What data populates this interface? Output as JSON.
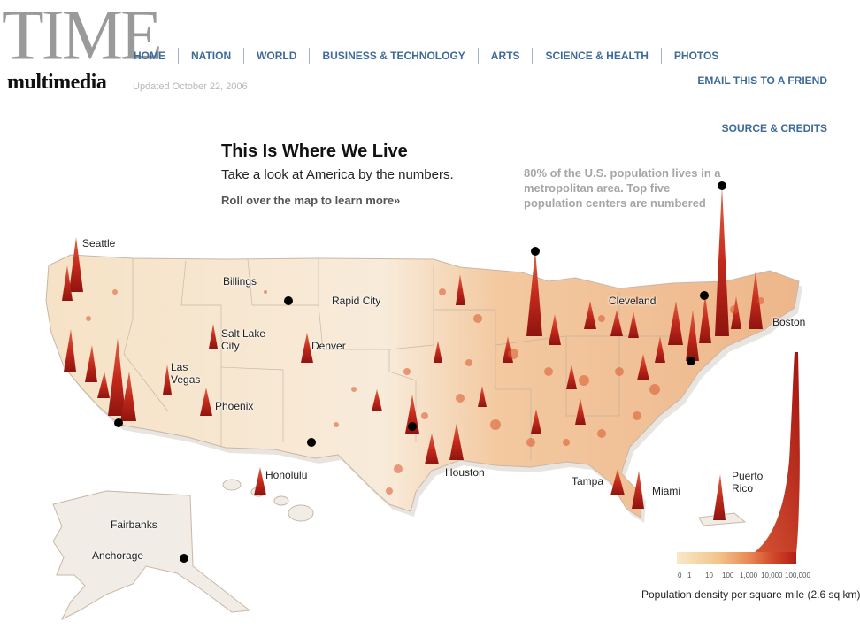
{
  "header": {
    "logo_text": "TIME",
    "logo_sub": "multimedia",
    "updated": "Updated October 22, 2006",
    "email_link": "EMAIL THIS TO A FRIEND",
    "source_link": "SOURCE & CREDITS"
  },
  "nav": {
    "items": [
      {
        "label": "HOME"
      },
      {
        "label": "NATION"
      },
      {
        "label": "WORLD"
      },
      {
        "label": "BUSINESS & TECHNOLOGY"
      },
      {
        "label": "ARTS"
      },
      {
        "label": "SCIENCE & HEALTH"
      },
      {
        "label": "PHOTOS"
      }
    ]
  },
  "main": {
    "title": "This Is Where We Live",
    "subtitle": "Take a look at America by the numbers.",
    "rollover": "Roll over the map to learn more»",
    "note": "80% of the U.S. population lives in a metropolitan area. Top five population centers are numbered"
  },
  "cities": {
    "seattle": "Seattle",
    "billings": "Billings",
    "rapid_city": "Rapid City",
    "salt_lake_city": "Salt Lake\nCity",
    "denver": "Denver",
    "las_vegas": "Las\nVegas",
    "phoenix": "Phoenix",
    "cleveland": "Cleveland",
    "boston": "Boston",
    "honolulu": "Honolulu",
    "houston": "Houston",
    "tampa": "Tampa",
    "miami": "Miami",
    "puerto_rico": "Puerto\nRico",
    "fairbanks": "Fairbanks",
    "anchorage": "Anchorage"
  },
  "legend": {
    "ticks": [
      "0",
      "1",
      "10",
      "100",
      "1,000",
      "10,000",
      "100,000"
    ],
    "caption": "Population density per square mile (2.6 sq km)",
    "colors": [
      "#f7e9c8",
      "#f3c48b",
      "#e98a55",
      "#d24a2c",
      "#b51d16"
    ]
  }
}
